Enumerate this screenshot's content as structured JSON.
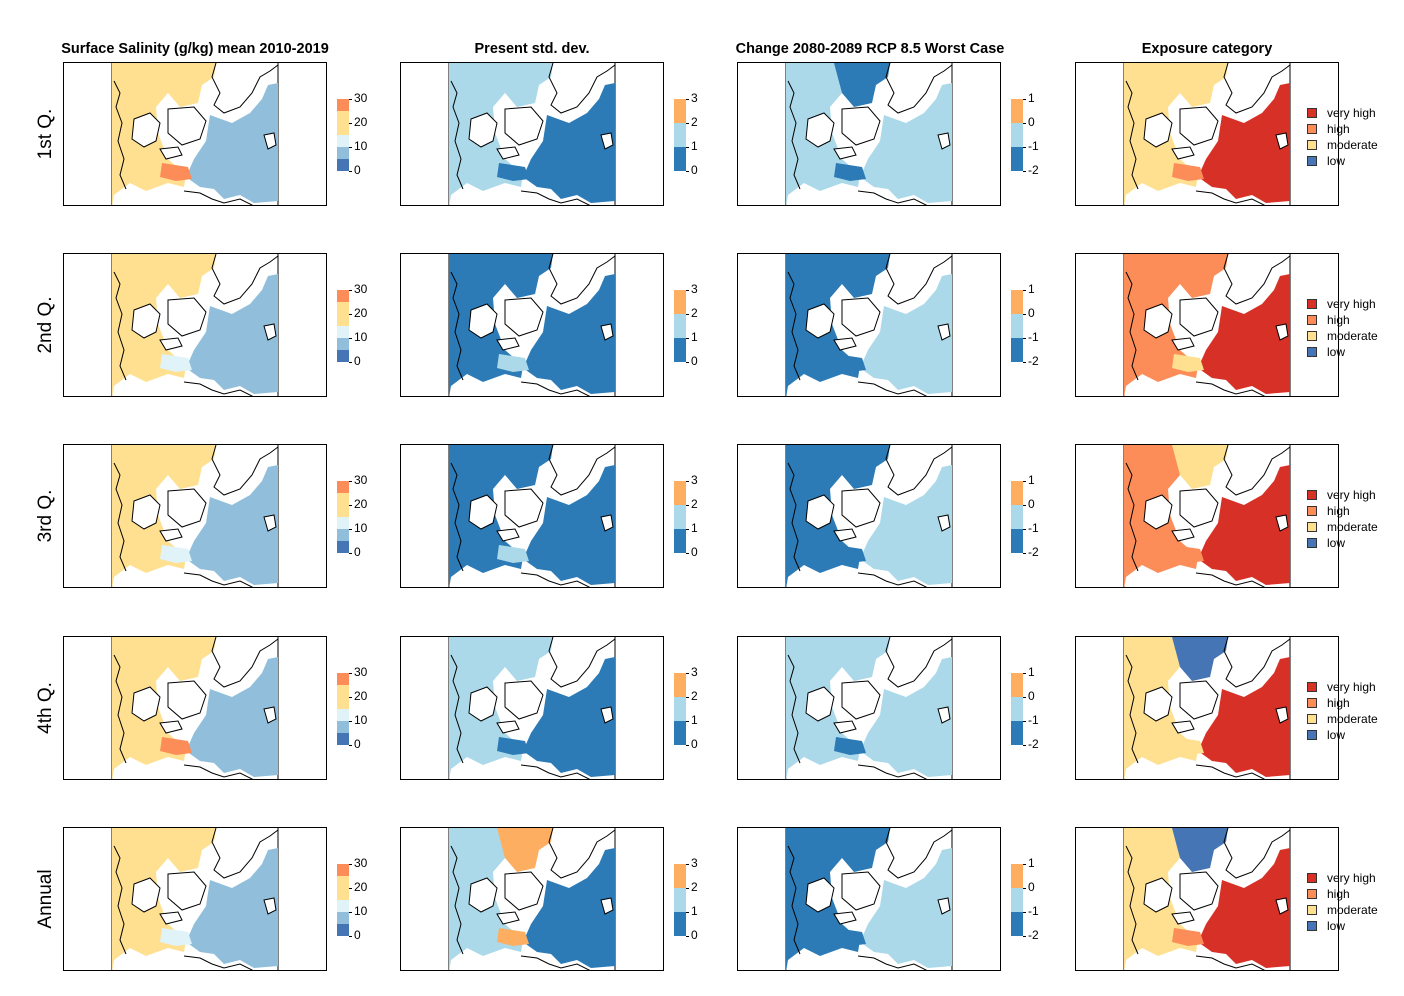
{
  "columns": [
    {
      "title": "Surface Salinity (g/kg) mean 2010-2019",
      "type": "scale",
      "ticks": [
        "30",
        "20",
        "10",
        "0"
      ],
      "bands": [
        "#fc8d59",
        "#fee090",
        "#fee090",
        "#e0f3f8",
        "#91bfdb",
        "#4575b4"
      ]
    },
    {
      "title": "Present std. dev.",
      "type": "scale",
      "ticks": [
        "3",
        "2",
        "1",
        "0"
      ],
      "bands": [
        "#fdae61",
        "#abd9e9",
        "#2c7bb6"
      ]
    },
    {
      "title": "Change 2080-2089 RCP 8.5 Worst Case",
      "type": "scale",
      "ticks": [
        "1",
        "0",
        "-1",
        "-2"
      ],
      "bands": [
        "#fdae61",
        "#abd9e9",
        "#2c7bb6"
      ]
    },
    {
      "title": "Exposure category",
      "type": "legend",
      "legend": [
        {
          "label": "very high",
          "color": "#d73027"
        },
        {
          "label": "high",
          "color": "#fc8d59"
        },
        {
          "label": "moderate",
          "color": "#fee090"
        },
        {
          "label": "low",
          "color": "#4575b4"
        }
      ]
    }
  ],
  "rows": [
    {
      "label": "1st Q.",
      "fills": [
        {
          "west": "#fee090",
          "north": "#fee090",
          "east": "#91bfdb",
          "patch": "#fc8d59"
        },
        {
          "west": "#abd9e9",
          "north": "#abd9e9",
          "east": "#2c7bb6",
          "patch": "#2c7bb6"
        },
        {
          "west": "#abd9e9",
          "north": "#2c7bb6",
          "east": "#abd9e9",
          "patch": "#2c7bb6"
        },
        {
          "west": "#fee090",
          "north": "#fee090",
          "east": "#d73027",
          "patch": "#fc8d59"
        }
      ]
    },
    {
      "label": "2nd Q.",
      "fills": [
        {
          "west": "#fee090",
          "north": "#fee090",
          "east": "#91bfdb",
          "patch": "#e0f3f8"
        },
        {
          "west": "#2c7bb6",
          "north": "#2c7bb6",
          "east": "#2c7bb6",
          "patch": "#abd9e9"
        },
        {
          "west": "#2c7bb6",
          "north": "#2c7bb6",
          "east": "#abd9e9",
          "patch": "#2c7bb6"
        },
        {
          "west": "#fc8d59",
          "north": "#fc8d59",
          "east": "#d73027",
          "patch": "#fee090"
        }
      ]
    },
    {
      "label": "3rd Q.",
      "fills": [
        {
          "west": "#fee090",
          "north": "#fee090",
          "east": "#91bfdb",
          "patch": "#e0f3f8"
        },
        {
          "west": "#2c7bb6",
          "north": "#2c7bb6",
          "east": "#2c7bb6",
          "patch": "#abd9e9"
        },
        {
          "west": "#2c7bb6",
          "north": "#2c7bb6",
          "east": "#abd9e9",
          "patch": "#2c7bb6"
        },
        {
          "west": "#fc8d59",
          "north": "#fee090",
          "east": "#d73027",
          "patch": "#fc8d59"
        }
      ]
    },
    {
      "label": "4th Q.",
      "fills": [
        {
          "west": "#fee090",
          "north": "#fee090",
          "east": "#91bfdb",
          "patch": "#fc8d59"
        },
        {
          "west": "#abd9e9",
          "north": "#abd9e9",
          "east": "#2c7bb6",
          "patch": "#2c7bb6"
        },
        {
          "west": "#abd9e9",
          "north": "#abd9e9",
          "east": "#abd9e9",
          "patch": "#2c7bb6"
        },
        {
          "west": "#fee090",
          "north": "#4575b4",
          "east": "#d73027",
          "patch": "#fee090"
        }
      ]
    },
    {
      "label": "Annual",
      "fills": [
        {
          "west": "#fee090",
          "north": "#fee090",
          "east": "#91bfdb",
          "patch": "#e0f3f8"
        },
        {
          "west": "#abd9e9",
          "north": "#fdae61",
          "east": "#2c7bb6",
          "patch": "#fdae61"
        },
        {
          "west": "#2c7bb6",
          "north": "#2c7bb6",
          "east": "#abd9e9",
          "patch": "#2c7bb6"
        },
        {
          "west": "#fee090",
          "north": "#4575b4",
          "east": "#d73027",
          "patch": "#fc8d59"
        }
      ]
    }
  ]
}
